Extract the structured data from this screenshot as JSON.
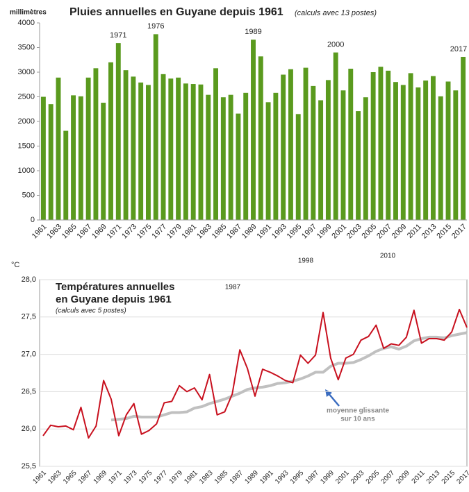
{
  "chart_data": [
    {
      "type": "bar",
      "title": "Pluies annuelles en Guyane depuis 1961",
      "subtitle": "(calculs avec 13 postes)",
      "y_label": "millimètres",
      "color": "#5a9a1e",
      "categories": [
        "1961",
        null,
        "1963",
        null,
        "1965",
        null,
        "1967",
        null,
        "1969",
        null,
        "1971",
        null,
        "1973",
        null,
        "1975",
        null,
        "1977",
        null,
        "1979",
        null,
        "1981",
        null,
        "1983",
        null,
        "1985",
        null,
        "1987",
        null,
        "1989",
        null,
        "1991",
        null,
        "1993",
        null,
        "1995",
        null,
        "1997",
        null,
        "1999",
        null,
        "2001",
        null,
        "2003",
        null,
        "2005",
        null,
        "2007",
        null,
        "2009",
        null,
        "2011",
        null,
        "2013",
        null,
        "2015",
        null,
        "2017"
      ],
      "values": [
        2500,
        2350,
        2890,
        1810,
        2530,
        2510,
        2890,
        3080,
        2380,
        3200,
        3590,
        3040,
        2910,
        2790,
        2740,
        3770,
        2960,
        2870,
        2890,
        2770,
        2760,
        2750,
        2540,
        3080,
        2490,
        2540,
        2160,
        2580,
        3660,
        3320,
        2390,
        2580,
        2950,
        3060,
        2150,
        3090,
        2720,
        2430,
        2840,
        3400,
        2630,
        3070,
        2210,
        2490,
        3000,
        3110,
        3030,
        2800,
        2740,
        2980,
        2690,
        2830,
        2920,
        2510,
        2810,
        2630,
        3310
      ],
      "peak_labels": [
        "1971",
        "1976",
        "1989",
        "2000",
        "2017"
      ],
      "notes": [
        "1998",
        "2010"
      ],
      "ylim": [
        0,
        4000
      ],
      "yticks": [
        0,
        500,
        1000,
        1500,
        2000,
        2500,
        3000,
        3500,
        4000
      ],
      "grid": false
    },
    {
      "type": "line",
      "title": [
        "Températures annuelles",
        "en Guyane depuis 1961"
      ],
      "subtitle": "(calculs avec 5 postes)",
      "y_label": "°C",
      "categories": [
        "1961",
        null,
        "1963",
        null,
        "1965",
        null,
        "1967",
        null,
        "1969",
        null,
        "1971",
        null,
        "1973",
        null,
        "1975",
        null,
        "1977",
        null,
        "1979",
        null,
        "1981",
        null,
        "1983",
        null,
        "1985",
        null,
        "1987",
        null,
        "1989",
        null,
        "1991",
        null,
        "1993",
        null,
        "1995",
        null,
        "1997",
        null,
        "1999",
        null,
        "2001",
        null,
        "2003",
        null,
        "2005",
        null,
        "2007",
        null,
        "2009",
        null,
        "2011",
        null,
        "2013",
        null,
        "2015",
        null,
        "2017"
      ],
      "series": [
        {
          "name": "Température annuelle",
          "color": "#c8101e",
          "values": [
            25.91,
            26.05,
            26.03,
            26.04,
            25.99,
            26.29,
            25.88,
            26.04,
            26.65,
            26.4,
            25.91,
            26.19,
            26.34,
            25.93,
            25.98,
            26.07,
            26.35,
            26.37,
            26.58,
            26.5,
            26.55,
            26.39,
            26.73,
            26.19,
            26.23,
            26.47,
            27.06,
            26.81,
            26.44,
            26.8,
            26.76,
            26.71,
            26.65,
            26.62,
            26.99,
            26.88,
            26.99,
            27.56,
            26.95,
            26.66,
            26.95,
            27.0,
            27.19,
            27.24,
            27.39,
            27.08,
            27.14,
            27.12,
            27.23,
            27.59,
            27.15,
            27.21,
            27.21,
            27.19,
            27.3,
            27.6,
            27.36
          ]
        },
        {
          "name": "moyenne glissante sur 10 ans",
          "color": "#c0c0c0",
          "values": [
            null,
            null,
            null,
            null,
            null,
            null,
            null,
            null,
            null,
            26.12,
            26.13,
            26.14,
            26.17,
            26.16,
            26.16,
            26.16,
            26.19,
            26.22,
            26.22,
            26.23,
            26.28,
            26.3,
            26.34,
            26.37,
            26.4,
            26.44,
            26.48,
            26.53,
            26.55,
            26.56,
            26.58,
            26.61,
            26.62,
            26.64,
            26.67,
            26.71,
            26.76,
            26.76,
            26.84,
            26.88,
            26.88,
            26.89,
            26.93,
            26.98,
            27.04,
            27.08,
            27.1,
            27.07,
            27.11,
            27.18,
            27.21,
            27.23,
            27.23,
            27.22,
            27.25,
            27.27,
            27.29
          ]
        }
      ],
      "annotation": [
        "moyenne glissante",
        "sur 10 ans"
      ],
      "notes": [
        "1987"
      ],
      "ylim": [
        25.5,
        28.0
      ],
      "yticks": [
        {
          "value": 25.5,
          "label": "25,5"
        },
        {
          "value": 26.0,
          "label": "26,0"
        },
        {
          "value": 26.5,
          "label": "26,5"
        },
        {
          "value": 27.0,
          "label": "27,0"
        },
        {
          "value": 27.5,
          "label": "27,5"
        },
        {
          "value": 28.0,
          "label": "28,0"
        }
      ],
      "grid": true
    }
  ]
}
